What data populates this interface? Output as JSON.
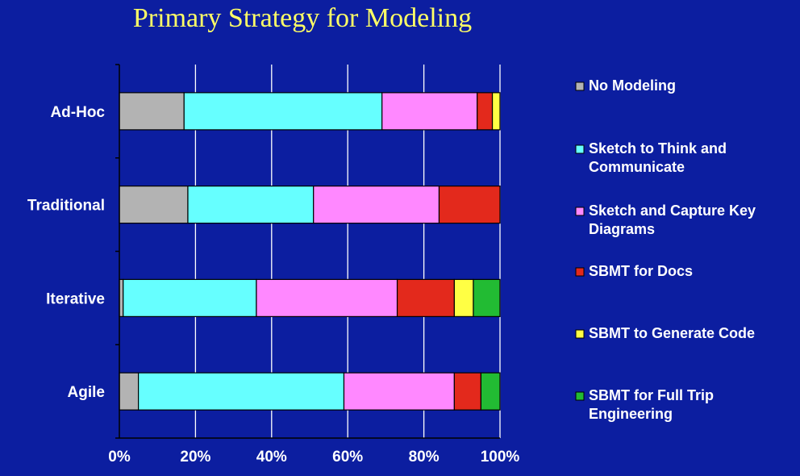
{
  "colors": {
    "background": "#0c1ea0",
    "title": "#ffff66",
    "gridline": "#ffffff",
    "bar_outline": "#000000"
  },
  "chart_data": {
    "type": "bar",
    "orientation": "horizontal",
    "stacked": true,
    "title": "Primary Strategy for Modeling",
    "categories": [
      "Ad-Hoc",
      "Traditional",
      "Iterative",
      "Agile"
    ],
    "xlim": [
      0,
      100
    ],
    "x_ticks": [
      "0%",
      "20%",
      "40%",
      "60%",
      "80%",
      "100%"
    ],
    "grid": true,
    "legend_position": "right",
    "series": [
      {
        "name": "No Modeling",
        "color": "#b3b3b3",
        "values": [
          17,
          18,
          1,
          5
        ]
      },
      {
        "name": "Sketch to Think and Communicate",
        "legend_lines": [
          "Sketch to Think and",
          "Communicate"
        ],
        "color": "#66ffff",
        "values": [
          52,
          33,
          35,
          54
        ]
      },
      {
        "name": "Sketch and Capture Key Diagrams",
        "legend_lines": [
          "Sketch and Capture Key",
          "Diagrams"
        ],
        "color": "#ff88ff",
        "values": [
          25,
          33,
          37,
          29
        ]
      },
      {
        "name": "SBMT for Docs",
        "legend_lines": [
          "SBMT for Docs"
        ],
        "color": "#e3291c",
        "values": [
          4,
          16,
          15,
          7
        ]
      },
      {
        "name": "SBMT to Generate Code",
        "legend_lines": [
          "SBMT to Generate Code"
        ],
        "color": "#ffff44",
        "values": [
          2,
          0,
          5,
          0
        ]
      },
      {
        "name": "SBMT for Full Trip Engineering",
        "legend_lines": [
          "SBMT for Full Trip",
          "Engineering"
        ],
        "color": "#22bb33",
        "values": [
          0,
          0,
          7,
          5
        ]
      }
    ]
  }
}
